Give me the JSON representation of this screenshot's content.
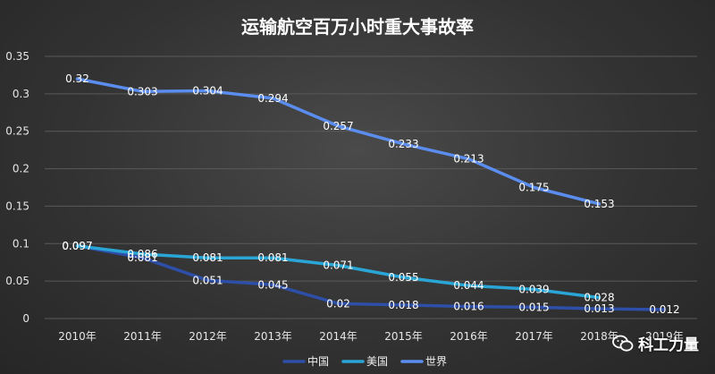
{
  "chart_data": {
    "type": "line",
    "title": "运输航空百万小时重大事故率",
    "categories": [
      "2010年",
      "2011年",
      "2012年",
      "2013年",
      "2014年",
      "2015年",
      "2016年",
      "2017年",
      "2018年",
      "2019年"
    ],
    "ylim": [
      0,
      0.35
    ],
    "yticks": [
      "0",
      "0.05",
      "0.1",
      "0.15",
      "0.2",
      "0.25",
      "0.3",
      "0.35"
    ],
    "grid": true,
    "legend_position": "bottom",
    "series": [
      {
        "name": "中国",
        "color": "#2e4fa8",
        "values": [
          0.097,
          0.081,
          0.051,
          0.045,
          0.02,
          0.018,
          0.016,
          0.015,
          0.013,
          0.012
        ],
        "labels": [
          "0.097",
          "0.081",
          "0.051",
          "0.045",
          "0.02",
          "0.018",
          "0.016",
          "0.015",
          "0.013",
          "0.012"
        ]
      },
      {
        "name": "美国",
        "color": "#2aa6d6",
        "values": [
          0.097,
          0.086,
          0.081,
          0.081,
          0.071,
          0.055,
          0.044,
          0.039,
          0.028,
          null
        ],
        "labels": [
          "0.097",
          "0.086",
          "0.081",
          "0.081",
          "0.071",
          "0.055",
          "0.044",
          "0.039",
          "0.028",
          ""
        ]
      },
      {
        "name": "世界",
        "color": "#5b8def",
        "values": [
          0.32,
          0.303,
          0.304,
          0.294,
          0.257,
          0.233,
          0.213,
          0.175,
          0.153,
          null
        ],
        "labels": [
          "0.32",
          "0.303",
          "0.304",
          "0.294",
          "0.257",
          "0.233",
          "0.213",
          "0.175",
          "0.153",
          ""
        ]
      }
    ]
  },
  "watermark": {
    "icon": "wechat-icon",
    "text": "科工力量"
  }
}
